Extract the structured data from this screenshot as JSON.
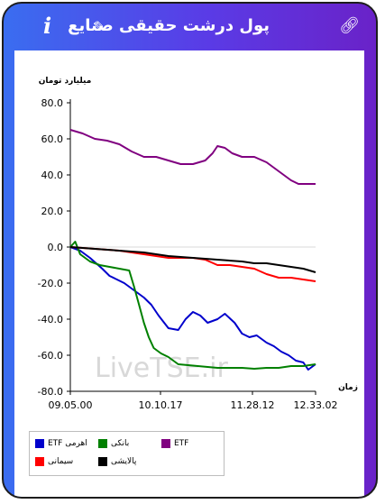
{
  "header": {
    "title": "پول درشت حقیقی صنایع",
    "info_icon": "i",
    "icons": [
      "info-icon",
      "pencil-icon",
      "link-icon"
    ],
    "accent_gradient": [
      "#3a6df0",
      "#6a22c8"
    ]
  },
  "watermark": "LiveTSE.ir",
  "chart_data": {
    "type": "line",
    "ylabel": "میلیارد تومان",
    "xlabel": "زمان",
    "ylim": [
      -80,
      80
    ],
    "yticks": [
      "80.0",
      "60.0",
      "40.0",
      "20.0",
      "0.0",
      "-20.0",
      "-40.0",
      "-60.0",
      "-80.0"
    ],
    "xticks": [
      "09.05.00",
      "10.10.17",
      "11.28.12",
      "12.33.02"
    ],
    "xlim": [
      0,
      1
    ],
    "grid": false,
    "legend_position": "bottom-left",
    "series": [
      {
        "name": "ETF اهرمی",
        "color": "#0000cc",
        "x": [
          0,
          0.04,
          0.08,
          0.13,
          0.16,
          0.19,
          0.22,
          0.26,
          0.3,
          0.33,
          0.36,
          0.4,
          0.44,
          0.47,
          0.5,
          0.53,
          0.56,
          0.6,
          0.63,
          0.67,
          0.7,
          0.73,
          0.76,
          0.8,
          0.83,
          0.86,
          0.89,
          0.92,
          0.95,
          0.97,
          1.0
        ],
        "y": [
          0,
          -2,
          -6,
          -12,
          -16,
          -18,
          -20,
          -24,
          -28,
          -32,
          -38,
          -45,
          -46,
          -40,
          -36,
          -38,
          -42,
          -40,
          -37,
          -42,
          -48,
          -50,
          -49,
          -53,
          -55,
          -58,
          -60,
          -63,
          -64,
          -68,
          -65
        ]
      },
      {
        "name": "بانکی",
        "color": "#008000",
        "x": [
          0,
          0.02,
          0.04,
          0.08,
          0.12,
          0.16,
          0.2,
          0.24,
          0.26,
          0.28,
          0.3,
          0.32,
          0.34,
          0.37,
          0.4,
          0.44,
          0.48,
          0.52,
          0.6,
          0.65,
          0.7,
          0.75,
          0.8,
          0.85,
          0.9,
          0.95,
          1.0
        ],
        "y": [
          0,
          3,
          -4,
          -8,
          -10,
          -11,
          -12,
          -13,
          -22,
          -32,
          -42,
          -50,
          -56,
          -59,
          -61,
          -65,
          -65.5,
          -66,
          -67,
          -67,
          -67,
          -67.5,
          -67,
          -67,
          -66,
          -66,
          -65
        ]
      },
      {
        "name": "ETF",
        "color": "#800080",
        "x": [
          0,
          0.05,
          0.1,
          0.15,
          0.2,
          0.25,
          0.3,
          0.35,
          0.4,
          0.45,
          0.5,
          0.55,
          0.58,
          0.6,
          0.63,
          0.66,
          0.7,
          0.75,
          0.8,
          0.85,
          0.9,
          0.93,
          0.96,
          1.0
        ],
        "y": [
          65,
          63,
          60,
          59,
          57,
          53,
          50,
          50,
          48,
          46,
          46,
          48,
          52,
          56,
          55,
          52,
          50,
          50,
          47,
          42,
          37,
          35,
          35,
          35
        ]
      },
      {
        "name": "سیمانی",
        "color": "#ff0000",
        "x": [
          0,
          0.1,
          0.2,
          0.3,
          0.4,
          0.5,
          0.55,
          0.6,
          0.65,
          0.7,
          0.75,
          0.8,
          0.85,
          0.9,
          0.95,
          1.0
        ],
        "y": [
          0,
          -1,
          -2,
          -4,
          -6,
          -6,
          -7,
          -10,
          -10,
          -11,
          -12,
          -15,
          -17,
          -17,
          -18,
          -19
        ]
      },
      {
        "name": "پالایشی",
        "color": "#000000",
        "x": [
          0,
          0.1,
          0.2,
          0.3,
          0.4,
          0.5,
          0.6,
          0.7,
          0.75,
          0.8,
          0.85,
          0.9,
          0.95,
          1.0
        ],
        "y": [
          0,
          -1,
          -2,
          -3,
          -5,
          -6,
          -7,
          -8,
          -9,
          -9,
          -10,
          -11,
          -12,
          -14
        ]
      }
    ]
  }
}
